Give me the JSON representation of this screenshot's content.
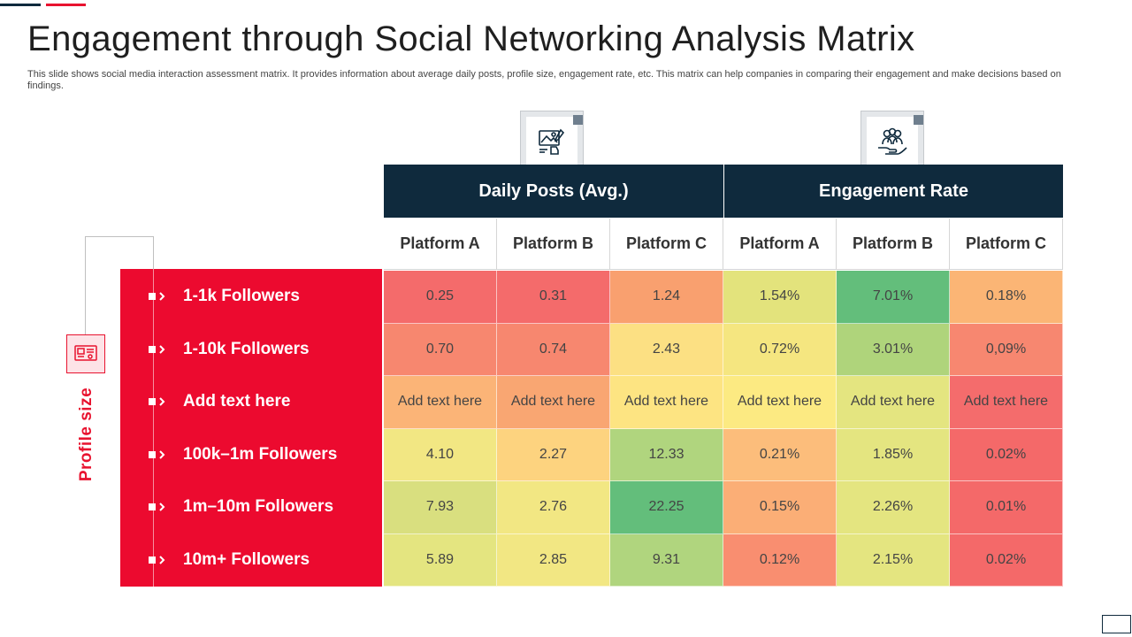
{
  "slide": {
    "title": "Engagement through Social Networking Analysis Matrix",
    "subtitle": "This slide shows social media interaction assessment matrix. It provides information about average daily posts, profile size, engagement rate, etc. This matrix can help companies in comparing their engagement and make decisions based on findings."
  },
  "colors": {
    "navy": "#0f2a3d",
    "red": "#ec0a2f"
  },
  "headers": {
    "groups": [
      "Daily Posts (Avg.)",
      "Engagement Rate"
    ],
    "platforms": [
      "Platform A",
      "Platform B",
      "Platform C",
      "Platform A",
      "Platform B",
      "Platform C"
    ]
  },
  "profile": {
    "label": "Profile size",
    "icon": "id-card-icon"
  },
  "rows": [
    {
      "label": "1-1k Followers",
      "cells": [
        "0.25",
        "0.31",
        "1.24",
        "1.54%",
        "7.01%",
        "0.18%"
      ],
      "colors": [
        "#f46b6b",
        "#f46b6b",
        "#f9a06f",
        "#e3e37c",
        "#63be7b",
        "#fbb575"
      ]
    },
    {
      "label": "1-10k Followers",
      "cells": [
        "0.70",
        "0.74",
        "2.43",
        "0.72%",
        "3.01%",
        "0,09%"
      ],
      "colors": [
        "#f7876f",
        "#f7876f",
        "#fce083",
        "#f5e680",
        "#afd47b",
        "#f78770"
      ]
    },
    {
      "label": "Add text here",
      "cells": [
        "Add text here",
        "Add text here",
        "Add text here",
        "Add text here",
        "Add text here",
        "Add text here"
      ],
      "colors": [
        "#fbb477",
        "#f9a672",
        "#fde482",
        "#fcea82",
        "#e4e580",
        "#f46c6c"
      ]
    },
    {
      "label": "100k–1m Followers",
      "cells": [
        "4.10",
        "2.27",
        "12.33",
        "0.21%",
        "1.85%",
        "0.02%"
      ],
      "colors": [
        "#f2e783",
        "#fdd37f",
        "#b0d57e",
        "#fcbd7b",
        "#e4e580",
        "#f46969"
      ]
    },
    {
      "label": "1m–10m Followers",
      "cells": [
        "7.93",
        "2.76",
        "22.25",
        "0.15%",
        "2.26%",
        "0.01%"
      ],
      "colors": [
        "#d9df7f",
        "#f2e783",
        "#63be7b",
        "#fbae76",
        "#e4e580",
        "#f46969"
      ]
    },
    {
      "label": "10m+ Followers",
      "cells": [
        "5.89",
        "2.85",
        "9.31",
        "0.12%",
        "2.15%",
        "0.02%"
      ],
      "colors": [
        "#e4e580",
        "#f2e783",
        "#b0d57e",
        "#f98e70",
        "#e4e580",
        "#f46969"
      ]
    }
  ]
}
